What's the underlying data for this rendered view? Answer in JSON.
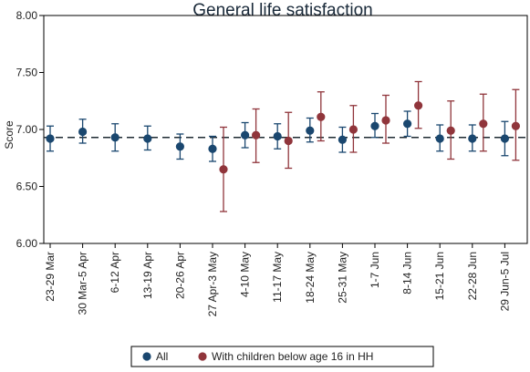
{
  "chart_data": {
    "type": "scatter",
    "title": "General life satisfaction",
    "xlabel": "",
    "ylabel": "Score",
    "ylim": [
      6.0,
      8.0
    ],
    "yticks": [
      "6.00",
      "6.50",
      "7.00",
      "7.50",
      "8.00"
    ],
    "reference_line": 6.93,
    "grid": false,
    "legend_position": "bottom",
    "categories": [
      "23-29 Mar",
      "30 Mar-5 Apr",
      "6-12 Apr",
      "13-19 Apr",
      "20-26 Apr",
      "27 Apr-3 May",
      "4-10 May",
      "11-17 May",
      "18-24 May",
      "25-31 May",
      "1-7 Jun",
      "8-14 Jun",
      "15-21 Jun",
      "22-28 Jun",
      "29 Jun-5 Jul"
    ],
    "series": [
      {
        "name": "All",
        "color": "#1a476f",
        "values": [
          6.92,
          6.98,
          6.93,
          6.92,
          6.85,
          6.83,
          6.95,
          6.94,
          6.99,
          6.91,
          7.03,
          7.05,
          6.92,
          6.92,
          6.92
        ],
        "ci_low": [
          6.81,
          6.88,
          6.81,
          6.82,
          6.74,
          6.72,
          6.84,
          6.83,
          6.89,
          6.8,
          6.93,
          6.94,
          6.81,
          6.81,
          6.77
        ],
        "ci_high": [
          7.03,
          7.09,
          7.05,
          7.03,
          6.96,
          6.94,
          7.06,
          7.05,
          7.1,
          7.02,
          7.14,
          7.16,
          7.04,
          7.04,
          7.07
        ]
      },
      {
        "name": "With children below age 16 in HH",
        "color": "#90353b",
        "values": [
          null,
          null,
          null,
          null,
          null,
          6.65,
          6.95,
          6.9,
          7.11,
          7.0,
          7.08,
          7.21,
          6.99,
          7.05,
          7.03
        ],
        "ci_low": [
          null,
          null,
          null,
          null,
          null,
          6.28,
          6.71,
          6.66,
          6.9,
          6.8,
          6.88,
          7.01,
          6.74,
          6.81,
          6.73
        ],
        "ci_high": [
          null,
          null,
          null,
          null,
          null,
          7.02,
          7.18,
          7.15,
          7.33,
          7.21,
          7.3,
          7.42,
          7.25,
          7.31,
          7.35
        ]
      }
    ]
  }
}
